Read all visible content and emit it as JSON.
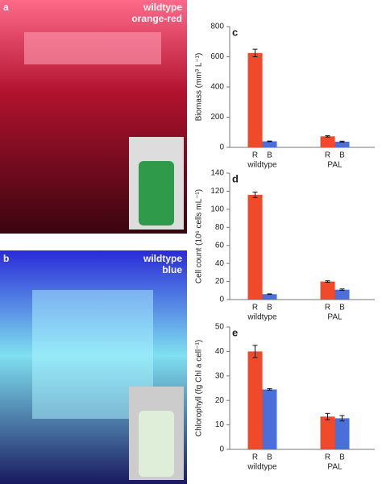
{
  "photos": [
    {
      "label": "a",
      "caption": [
        "wildtype",
        "orange-red"
      ]
    },
    {
      "label": "b",
      "caption": [
        "wildtype",
        "blue"
      ]
    }
  ],
  "chart_data": [
    {
      "type": "bar",
      "panel_label": "c",
      "y_label": "Biomass (mm³ L⁻¹)",
      "categories": [
        "wildtype",
        "PAL"
      ],
      "series": [
        {
          "name": "R",
          "color": "#f04a2a",
          "values": [
            625,
            73
          ],
          "errors": [
            25,
            4
          ]
        },
        {
          "name": "B",
          "color": "#4a6fd8",
          "values": [
            40,
            38
          ],
          "errors": [
            2,
            3
          ]
        }
      ],
      "ylim": [
        0,
        800
      ],
      "yticks": [
        0,
        200,
        400,
        600,
        800
      ]
    },
    {
      "type": "bar",
      "panel_label": "d",
      "y_label": "Cell count (10⁶ cells mL⁻¹)",
      "categories": [
        "wildtype",
        "PAL"
      ],
      "series": [
        {
          "name": "R",
          "color": "#f04a2a",
          "values": [
            116,
            20
          ],
          "errors": [
            3,
            0.8
          ]
        },
        {
          "name": "B",
          "color": "#4a6fd8",
          "values": [
            6,
            11
          ],
          "errors": [
            0.3,
            0.8
          ]
        }
      ],
      "ylim": [
        0,
        140
      ],
      "yticks": [
        0,
        20,
        40,
        60,
        80,
        100,
        120,
        140
      ]
    },
    {
      "type": "bar",
      "panel_label": "e",
      "y_label": "Chlorophyll (fg Chl a cell⁻¹)",
      "categories": [
        "wildtype",
        "PAL"
      ],
      "series": [
        {
          "name": "R",
          "color": "#f04a2a",
          "values": [
            40,
            13.4
          ],
          "errors": [
            2.5,
            1.3
          ]
        },
        {
          "name": "B",
          "color": "#4a6fd8",
          "values": [
            24.5,
            12.7
          ],
          "errors": [
            0.3,
            1.1
          ]
        }
      ],
      "ylim": [
        0,
        50
      ],
      "yticks": [
        0,
        10,
        20,
        30,
        40,
        50
      ]
    }
  ]
}
